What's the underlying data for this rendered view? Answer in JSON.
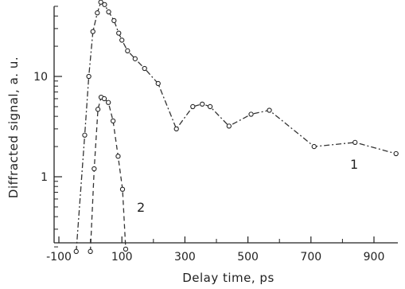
{
  "chart_data": {
    "type": "line",
    "xlabel": "Delay time, ps",
    "ylabel": "Diffracted signal, a. u.",
    "y_scale": "log",
    "xlim": [
      -100,
      1000
    ],
    "ylim": [
      0.15,
      90
    ],
    "x_ticks": [
      -100,
      100,
      300,
      500,
      700,
      900
    ],
    "x_tick_labels": [
      "-100",
      "100",
      "300",
      "500",
      "700",
      "900"
    ],
    "y_ticks": [
      1,
      10
    ],
    "y_tick_labels": [
      "1",
      "10"
    ],
    "grid": false,
    "legend": "none",
    "series": [
      {
        "label": "1",
        "line_style": "dash-dot",
        "marker": "circle",
        "points": [
          {
            "x": -45,
            "y": 0.18
          },
          {
            "x": -18,
            "y": 2.6
          },
          {
            "x": -5,
            "y": 10
          },
          {
            "x": 8,
            "y": 28
          },
          {
            "x": 22,
            "y": 43
          },
          {
            "x": 33,
            "y": 55
          },
          {
            "x": 45,
            "y": 52
          },
          {
            "x": 58,
            "y": 44
          },
          {
            "x": 75,
            "y": 36
          },
          {
            "x": 90,
            "y": 27
          },
          {
            "x": 100,
            "y": 23
          },
          {
            "x": 118,
            "y": 18
          },
          {
            "x": 142,
            "y": 15
          },
          {
            "x": 172,
            "y": 12
          },
          {
            "x": 215,
            "y": 8.5
          },
          {
            "x": 273,
            "y": 3.0
          },
          {
            "x": 325,
            "y": 5.0
          },
          {
            "x": 355,
            "y": 5.3
          },
          {
            "x": 380,
            "y": 5.0
          },
          {
            "x": 440,
            "y": 3.2
          },
          {
            "x": 510,
            "y": 4.2
          },
          {
            "x": 568,
            "y": 4.6
          },
          {
            "x": 710,
            "y": 2.0
          },
          {
            "x": 840,
            "y": 2.2
          },
          {
            "x": 970,
            "y": 1.7
          }
        ]
      },
      {
        "label": "2",
        "line_style": "dashed",
        "marker": "circle",
        "points": [
          {
            "x": 0,
            "y": 0.18
          },
          {
            "x": 12,
            "y": 1.2
          },
          {
            "x": 24,
            "y": 4.7
          },
          {
            "x": 34,
            "y": 6.2
          },
          {
            "x": 44,
            "y": 6.0
          },
          {
            "x": 57,
            "y": 5.5
          },
          {
            "x": 72,
            "y": 3.6
          },
          {
            "x": 88,
            "y": 1.6
          },
          {
            "x": 102,
            "y": 0.75
          },
          {
            "x": 112,
            "y": 0.19
          }
        ]
      }
    ]
  }
}
